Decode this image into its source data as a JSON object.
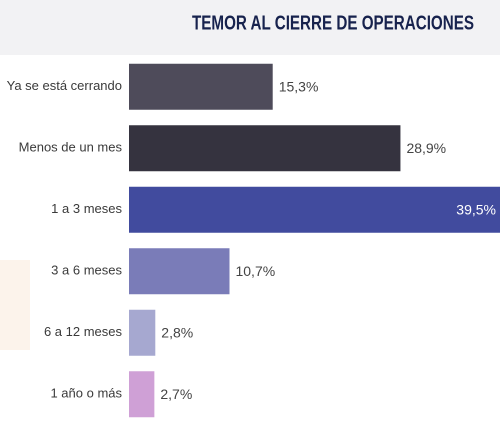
{
  "chart_data": {
    "type": "hbar",
    "title": "TEMOR AL CIERRE DE OPERACIONES",
    "categories": [
      "Ya se está cerrando",
      "Menos de un mes",
      "1 a 3 meses",
      "3 a 6 meses",
      "6 a 12 meses",
      "1 año o más"
    ],
    "values": [
      15.3,
      28.9,
      39.5,
      10.7,
      2.8,
      2.7
    ],
    "value_labels": [
      "15,3%",
      "28,9%",
      "39,5%",
      "10,7%",
      "2,8%",
      "2,7%"
    ],
    "colors": [
      "#4e4b5a",
      "#35333f",
      "#414b9e",
      "#7a7cb8",
      "#a6a8d0",
      "#cfa0d6"
    ]
  }
}
